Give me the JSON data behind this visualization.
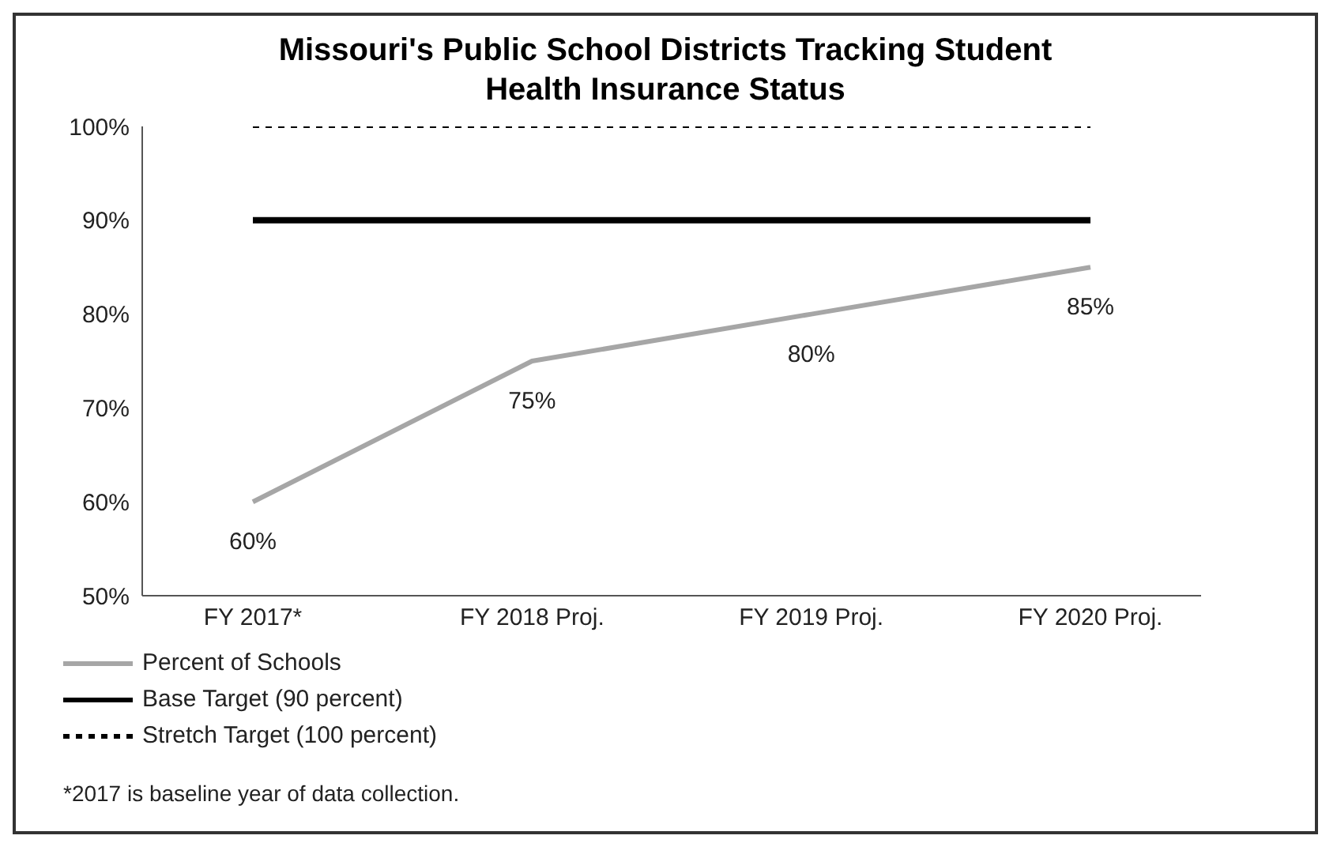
{
  "chart_data": {
    "type": "line",
    "title": "Missouri's Public School Districts Tracking Student Health Insurance Status",
    "categories": [
      "FY 2017*",
      "FY 2018 Proj.",
      "FY 2019 Proj.",
      "FY 2020 Proj."
    ],
    "series": [
      {
        "name": "Percent of Schools",
        "color": "#a6a6a6",
        "values": [
          60,
          75,
          80,
          85
        ],
        "value_labels": [
          "60%",
          "75%",
          "80%",
          "85%"
        ]
      },
      {
        "name": "Base Target (90 percent)",
        "color": "#000000",
        "values": [
          90,
          90,
          90,
          90
        ]
      },
      {
        "name": "Stretch Target (100 percent)",
        "color": "#000000",
        "values": [
          100,
          100,
          100,
          100
        ],
        "line_style": "dotted"
      }
    ],
    "ylim": [
      50,
      100
    ],
    "yticks": [
      {
        "value": 50,
        "label": "50%"
      },
      {
        "value": 60,
        "label": "60%"
      },
      {
        "value": 70,
        "label": "70%"
      },
      {
        "value": 80,
        "label": "80%"
      },
      {
        "value": 90,
        "label": "90%"
      },
      {
        "value": 100,
        "label": "100%"
      }
    ],
    "grid": false,
    "legend": "bottom",
    "marker": "none",
    "annotations": [
      "*2017 is baseline year of data collection."
    ]
  }
}
